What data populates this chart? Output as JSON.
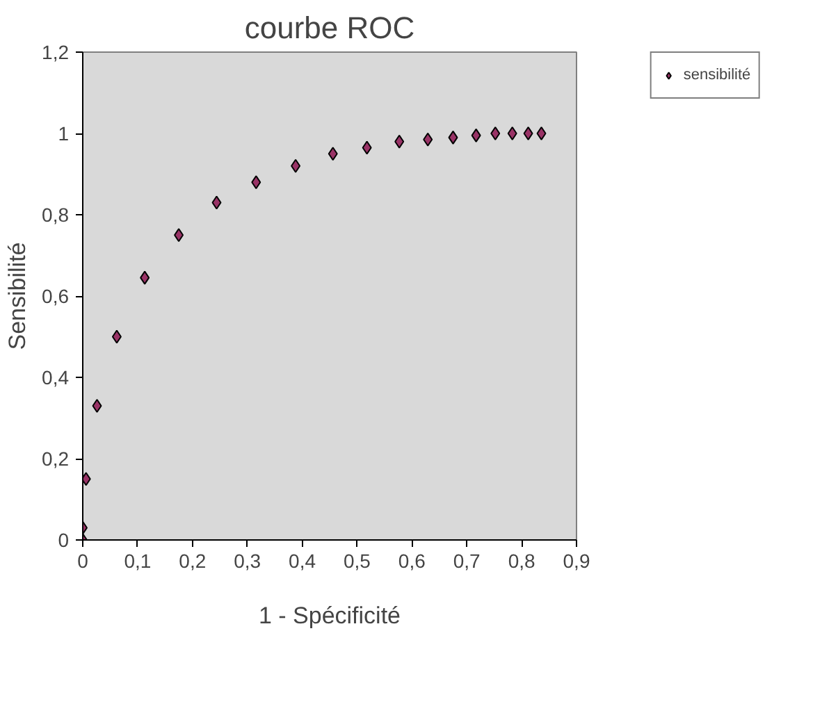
{
  "chart_data": {
    "type": "scatter",
    "title": "courbe ROC",
    "xlabel": "1 - Spécificité",
    "ylabel": "Sensibilité",
    "x": [
      0,
      0,
      0.006,
      0.026,
      0.062,
      0.113,
      0.175,
      0.244,
      0.316,
      0.388,
      0.456,
      0.518,
      0.577,
      0.629,
      0.675,
      0.717,
      0.752,
      0.783,
      0.812,
      0.836
    ],
    "series": [
      {
        "name": "sensibilité",
        "color": "#993366",
        "values": [
          0,
          0.03,
          0.15,
          0.33,
          0.5,
          0.645,
          0.75,
          0.83,
          0.88,
          0.92,
          0.95,
          0.965,
          0.98,
          0.985,
          0.99,
          0.995,
          1.0,
          1.0,
          1.0,
          1.0
        ]
      }
    ],
    "xlim": [
      0,
      0.9
    ],
    "ylim": [
      0,
      1.2
    ],
    "xticks": [
      0,
      {
        "value": 0.1,
        "label": "0,1"
      },
      {
        "value": 0.2,
        "label": "0,2"
      },
      {
        "value": 0.3,
        "label": "0,3"
      },
      {
        "value": 0.4,
        "label": "0,4"
      },
      {
        "value": 0.5,
        "label": "0,5"
      },
      {
        "value": 0.6,
        "label": "0,6"
      },
      {
        "value": 0.7,
        "label": "0,7"
      },
      {
        "value": 0.8,
        "label": "0,8"
      },
      {
        "value": 0.9,
        "label": "0,9"
      }
    ],
    "yticks": [
      0,
      {
        "value": 0.2,
        "label": "0,2"
      },
      {
        "value": 0.4,
        "label": "0,4"
      },
      {
        "value": 0.6,
        "label": "0,6"
      },
      {
        "value": 0.8,
        "label": "0,8"
      },
      1,
      {
        "value": 1.2,
        "label": "1,2"
      }
    ],
    "marker": "diamond",
    "grid": false,
    "legend": "top right"
  }
}
